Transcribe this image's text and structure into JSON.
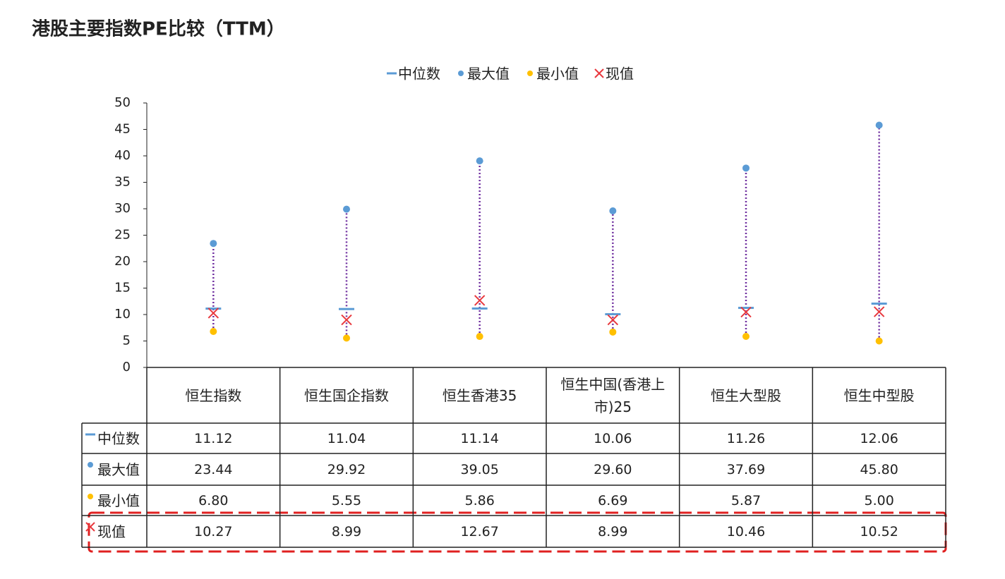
{
  "chart_data": {
    "type": "range-dot",
    "title": "港股主要指数PE比较（TTM）",
    "categories": [
      "恒生指数",
      "恒生国企指数",
      "恒生香港35",
      "恒生中国(香港上市)25",
      "恒生大型股",
      "恒生中型股"
    ],
    "ylim": [
      0,
      50
    ],
    "yticks": [
      0,
      5,
      10,
      15,
      20,
      25,
      30,
      35,
      40,
      45,
      50
    ],
    "range_color": "#7030a0",
    "series": [
      {
        "name": "中位数",
        "marker": "dash",
        "color": "#5b9bd5",
        "values": [
          11.12,
          11.04,
          11.14,
          10.06,
          11.26,
          12.06
        ],
        "value_labels": [
          "11.12",
          "11.04",
          "11.14",
          "10.06",
          "11.26",
          "12.06"
        ]
      },
      {
        "name": "最大值",
        "marker": "dot",
        "color": "#5b9bd5",
        "values": [
          23.44,
          29.92,
          39.05,
          29.6,
          37.69,
          45.8
        ],
        "value_labels": [
          "23.44",
          "29.92",
          "39.05",
          "29.60",
          "37.69",
          "45.80"
        ]
      },
      {
        "name": "最小值",
        "marker": "dot",
        "color": "#ffc000",
        "values": [
          6.8,
          5.55,
          5.86,
          6.69,
          5.87,
          5.0
        ],
        "value_labels": [
          "6.80",
          "5.55",
          "5.86",
          "6.69",
          "5.87",
          "5.00"
        ]
      },
      {
        "name": "现值",
        "marker": "cross",
        "color": "#e8383d",
        "values": [
          10.27,
          8.99,
          12.67,
          8.99,
          10.46,
          10.52
        ],
        "value_labels": [
          "10.27",
          "8.99",
          "12.67",
          "8.99",
          "10.46",
          "10.52"
        ]
      }
    ]
  }
}
